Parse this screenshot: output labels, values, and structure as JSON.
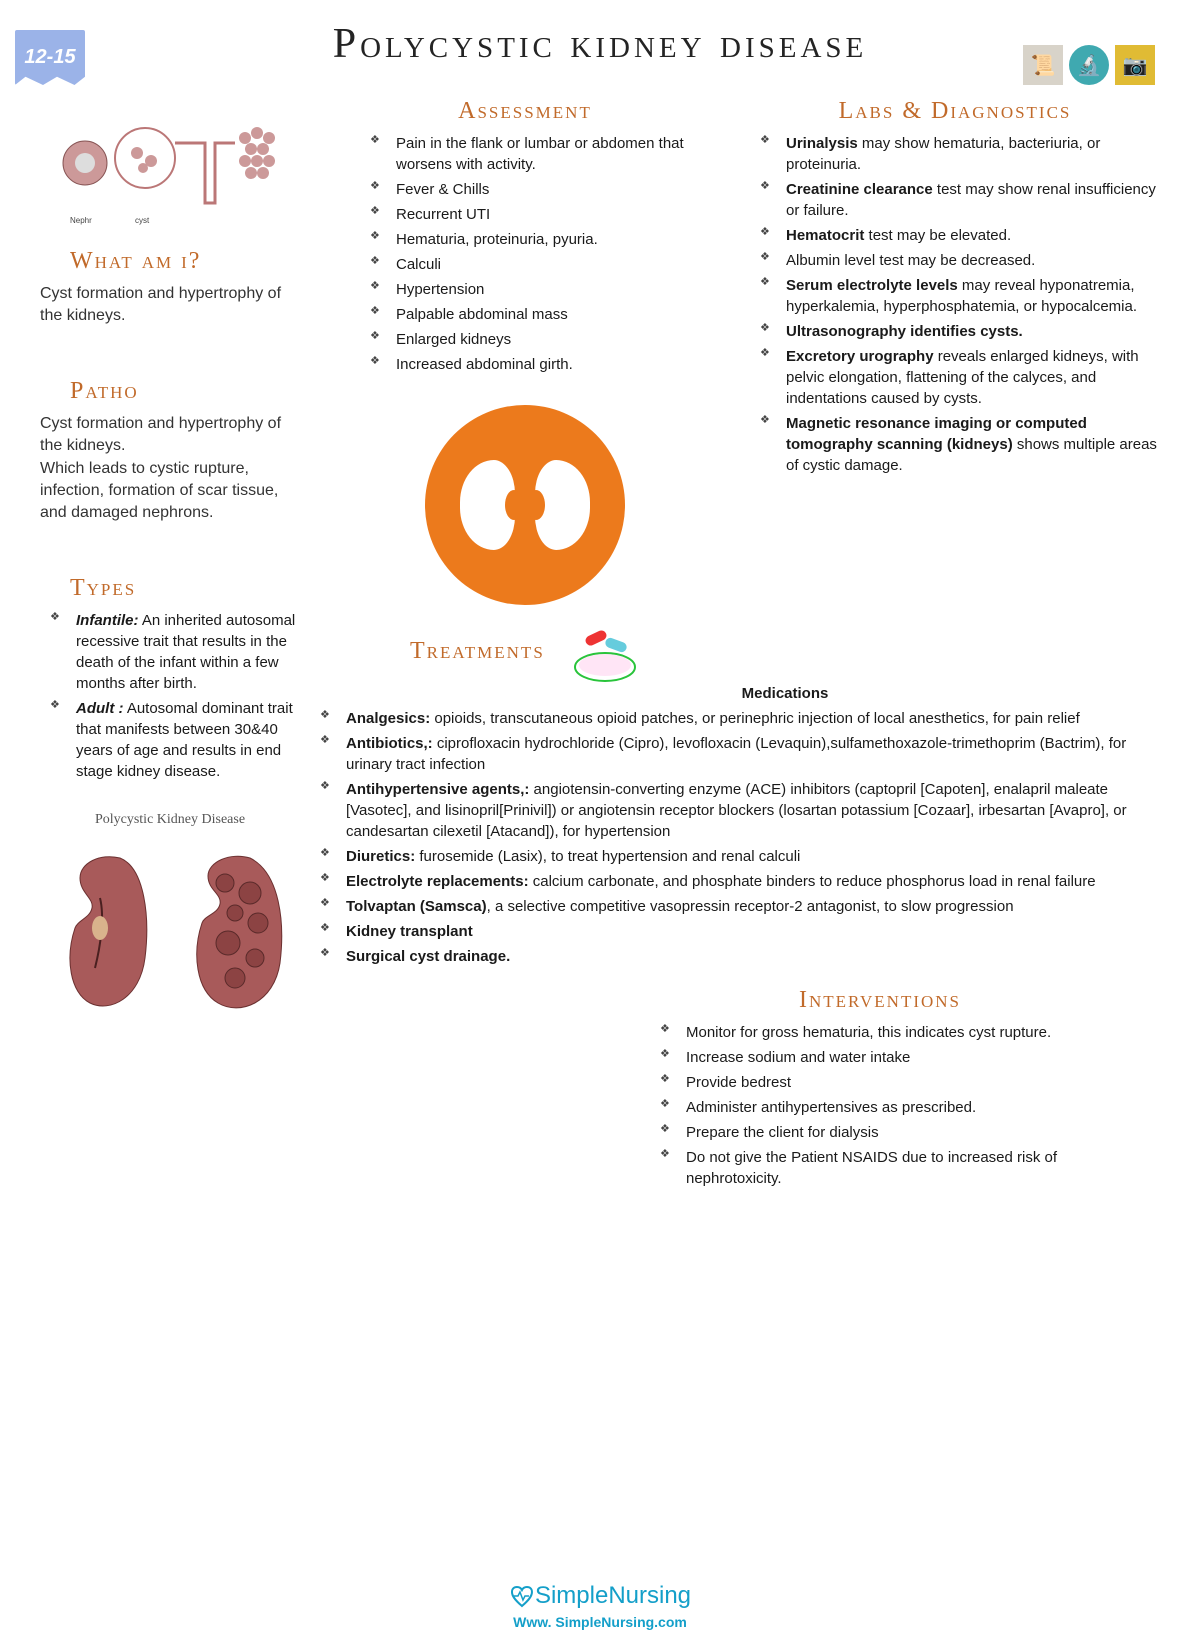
{
  "badge": "12-15",
  "title": "Polycystic kidney disease",
  "colors": {
    "heading": "#c16a2a",
    "badge_bg": "#9bb3e8",
    "kidney_circle": "#ec7a1c",
    "brand": "#149fc9"
  },
  "whatami": {
    "heading": "What am i?",
    "text": "Cyst formation and hypertrophy of the kidneys."
  },
  "patho": {
    "heading": "Patho",
    "text": "Cyst formation and hypertrophy of the kidneys.\nWhich leads to cystic rupture, infection, formation of scar tissue, and damaged nephrons."
  },
  "types": {
    "heading": "Types",
    "items": [
      "<em>Infantile:</em> An inherited autosomal recessive trait that results in the death of the infant within a few months after birth.",
      "<em>Adult :</em> Autosomal dominant trait that manifests between 30&40 years of age and results in end stage kidney disease."
    ]
  },
  "assessment": {
    "heading": "Assessment",
    "items": [
      "Pain in the flank or lumbar or abdomen that worsens with activity.",
      "Fever & Chills",
      "Recurrent UTI",
      "Hematuria, proteinuria, pyuria.",
      "Calculi",
      "Hypertension",
      "Palpable abdominal mass",
      "Enlarged kidneys",
      "Increased abdominal girth."
    ]
  },
  "labs": {
    "heading": "Labs & Diagnostics",
    "items": [
      "<strong>Urinalysis</strong> may show hematuria, bacteriuria, or proteinuria.",
      "<strong>Creatinine clearance</strong> test may show renal insufficiency or failure.",
      "<strong>Hematocrit</strong> test may be elevated.",
      "Albumin level test may be decreased.",
      "<strong>Serum electrolyte levels</strong> may reveal hyponatremia, hyperkalemia, hyperphosphatemia, or hypocalcemia.",
      "<strong>Ultrasonography identifies cysts.</strong>",
      "<strong>Excretory urography</strong> reveals enlarged kidneys, with pelvic elongation, flattening of the calyces, and indentations caused by cysts.",
      "<strong>Magnetic resonance imaging or computed tomography scanning (kidneys)</strong> shows multiple areas of cystic damage."
    ]
  },
  "treatments": {
    "heading": "Treatments",
    "subtitle": "Medications",
    "items": [
      "<strong>Analgesics:</strong> opioids, transcutaneous opioid patches, or perinephric injection of local anesthetics, for pain relief",
      "<strong>Antibiotics,:</strong> ciprofloxacin hydrochloride (Cipro), levofloxacin (Levaquin),sulfamethoxazole-trimethoprim (Bactrim), for urinary tract infection",
      "<strong>Antihypertensive agents,:</strong> angiotensin-converting enzyme (ACE) inhibitors (captopril [Capoten], enalapril maleate [Vasotec], and lisinopril[Prinivil]) or angiotensin receptor blockers (losartan potassium [Cozaar], irbesartan [Avapro], or candesartan cilexetil [Atacand]), for hypertension",
      "<strong>Diuretics:</strong> furosemide (Lasix), to treat hypertension and renal calculi",
      "<strong>Electrolyte replacements:</strong> calcium carbonate, and phosphate binders to reduce phosphorus load in renal failure",
      "<strong>Tolvaptan (Samsca)</strong>, a selective competitive vasopressin receptor-2 antagonist, to slow progression",
      "<strong>Kidney transplant</strong>",
      "<strong>Surgical cyst drainage.</strong>"
    ]
  },
  "interventions": {
    "heading": "Interventions",
    "items": [
      "Monitor for gross hematuria, this indicates cyst rupture.",
      "Increase sodium and water intake",
      "Provide bedrest",
      "Administer antihypertensives as prescribed.",
      "Prepare the client for dialysis",
      "Do not give the Patient NSAIDS due to increased risk of nephrotoxicity."
    ]
  },
  "compare_title": "Polycystic Kidney Disease",
  "brand": {
    "name": "SimpleNursing",
    "url": "Www. SimpleNursing.com"
  }
}
